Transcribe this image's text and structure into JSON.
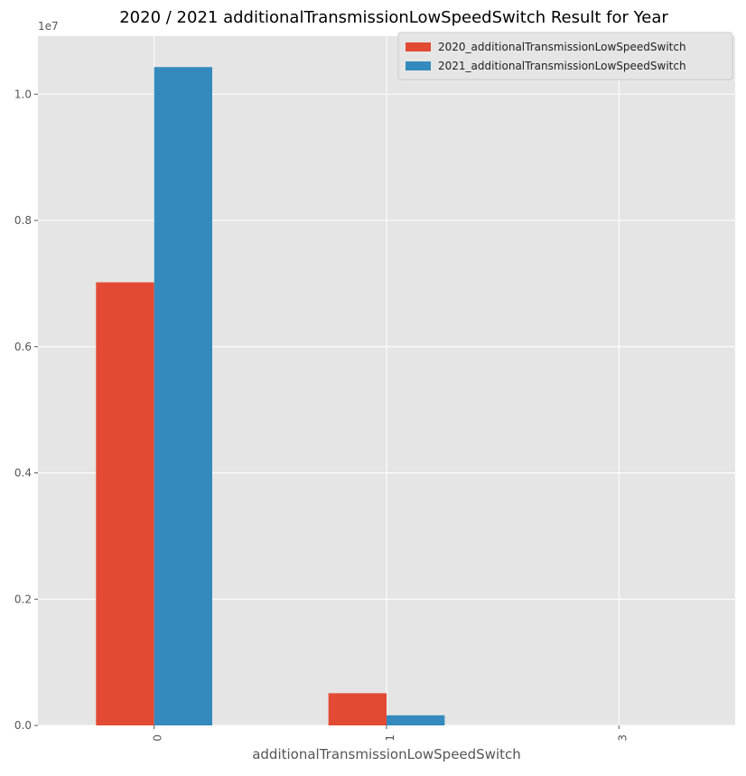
{
  "chart_data": {
    "type": "bar",
    "title": "2020 / 2021 additionalTransmissionLowSpeedSwitch Result for Year",
    "xlabel": "additionalTransmissionLowSpeedSwitch",
    "ylabel": "",
    "categories": [
      "0",
      "1",
      "3"
    ],
    "series": [
      {
        "name": "2020_additionalTransmissionLowSpeedSwitch",
        "color": "#e24a33",
        "values": [
          7020000,
          510000,
          0
        ]
      },
      {
        "name": "2021_additionalTransmissionLowSpeedSwitch",
        "color": "#348abd",
        "values": [
          10430000,
          160000,
          0
        ]
      }
    ],
    "ylim": [
      0,
      10920000
    ],
    "y_ticks": [
      0,
      2000000,
      4000000,
      6000000,
      8000000,
      10000000
    ],
    "y_tick_labels": [
      "0.0",
      "0.2",
      "0.4",
      "0.6",
      "0.8",
      "1.0"
    ],
    "y_scale_label": "1e7",
    "grid": true,
    "legend_position": "top-right",
    "colors": {
      "plot_background": "#e5e5e5",
      "grid": "#ffffff",
      "text": "#555555",
      "title": "#000000"
    }
  }
}
